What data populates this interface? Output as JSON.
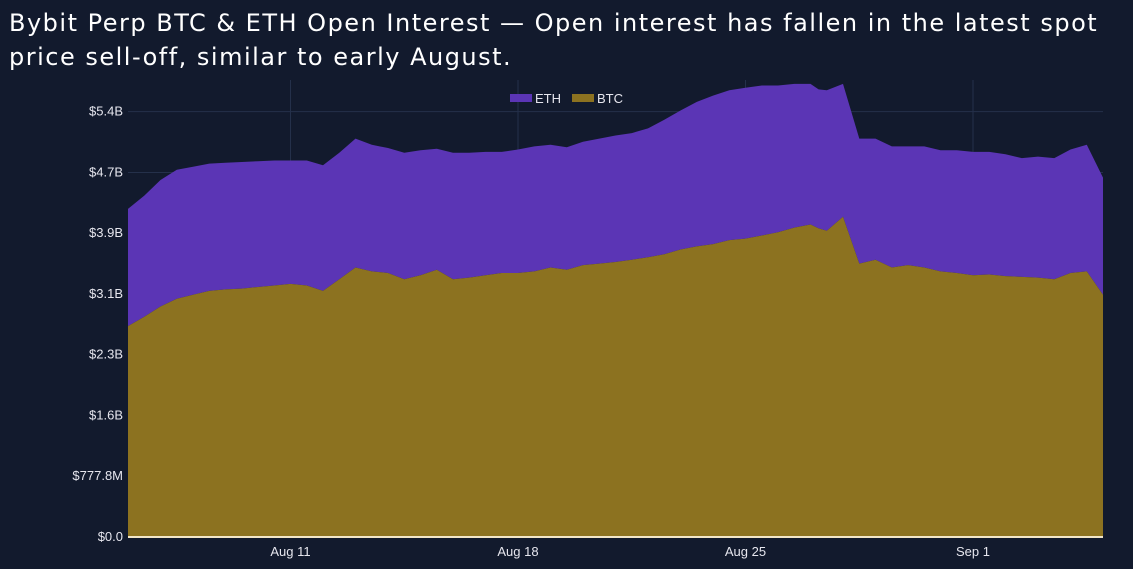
{
  "title": "Bybit Perp BTC & ETH Open Interest — Open interest has fallen in the latest spot price sell-off, similar to early August.",
  "colors": {
    "background": "#121a2d",
    "grid": "#24304a",
    "eth": "#5b35b5",
    "btc": "#8c7220",
    "baseline": "#f2e6c8",
    "text": "#e6e6ee"
  },
  "chart_data": {
    "type": "area",
    "stacked": true,
    "grid": true,
    "legend_position": "top-center",
    "ylim": [
      0,
      5.85
    ],
    "yticks": [
      {
        "value": 0,
        "label": "$0.0"
      },
      {
        "value": 0.7778,
        "label": "$777.8M"
      },
      {
        "value": 1.5556,
        "label": "$1.6B"
      },
      {
        "value": 2.3333,
        "label": "$2.3B"
      },
      {
        "value": 3.1111,
        "label": "$3.1B"
      },
      {
        "value": 3.8889,
        "label": "$3.9B"
      },
      {
        "value": 4.6667,
        "label": "$4.7B"
      },
      {
        "value": 5.4444,
        "label": "$5.4B"
      }
    ],
    "xlim": [
      "2024-08-06",
      "2024-09-05"
    ],
    "xticks": [
      {
        "value": "2024-08-11",
        "label": "Aug 11"
      },
      {
        "value": "2024-08-18",
        "label": "Aug 18"
      },
      {
        "value": "2024-08-25",
        "label": "Aug 25"
      },
      {
        "value": "2024-09-01",
        "label": "Sep 1"
      }
    ],
    "x": [
      "2024-08-06",
      "2024-08-06T12",
      "2024-08-07",
      "2024-08-07T12",
      "2024-08-08",
      "2024-08-08T12",
      "2024-08-09",
      "2024-08-09T12",
      "2024-08-10",
      "2024-08-10T12",
      "2024-08-11",
      "2024-08-11T12",
      "2024-08-12",
      "2024-08-12T12",
      "2024-08-13",
      "2024-08-13T12",
      "2024-08-14",
      "2024-08-14T12",
      "2024-08-15",
      "2024-08-15T12",
      "2024-08-16",
      "2024-08-16T12",
      "2024-08-17",
      "2024-08-17T12",
      "2024-08-18",
      "2024-08-18T12",
      "2024-08-19",
      "2024-08-19T12",
      "2024-08-20",
      "2024-08-20T12",
      "2024-08-21",
      "2024-08-21T12",
      "2024-08-22",
      "2024-08-22T12",
      "2024-08-23",
      "2024-08-23T12",
      "2024-08-24",
      "2024-08-24T12",
      "2024-08-25",
      "2024-08-25T12",
      "2024-08-26",
      "2024-08-26T12",
      "2024-08-27",
      "2024-08-27T06",
      "2024-08-27T12",
      "2024-08-28",
      "2024-08-28T12",
      "2024-08-29",
      "2024-08-29T12",
      "2024-08-30",
      "2024-08-30T12",
      "2024-08-31",
      "2024-08-31T12",
      "2024-09-01",
      "2024-09-01T12",
      "2024-09-02",
      "2024-09-02T12",
      "2024-09-03",
      "2024-09-03T12",
      "2024-09-04",
      "2024-09-04T12",
      "2024-09-05"
    ],
    "series": [
      {
        "name": "BTC",
        "values": [
          2.7,
          2.82,
          2.95,
          3.05,
          3.1,
          3.15,
          3.17,
          3.18,
          3.2,
          3.22,
          3.24,
          3.22,
          3.15,
          3.3,
          3.45,
          3.4,
          3.38,
          3.3,
          3.35,
          3.42,
          3.3,
          3.32,
          3.35,
          3.38,
          3.38,
          3.4,
          3.45,
          3.42,
          3.48,
          3.5,
          3.52,
          3.55,
          3.58,
          3.62,
          3.68,
          3.72,
          3.75,
          3.8,
          3.82,
          3.86,
          3.9,
          3.96,
          4.0,
          3.95,
          3.92,
          4.1,
          3.5,
          3.55,
          3.45,
          3.48,
          3.45,
          3.4,
          3.38,
          3.35,
          3.36,
          3.34,
          3.33,
          3.32,
          3.3,
          3.38,
          3.4,
          3.1
        ]
      },
      {
        "name": "ETH",
        "values": [
          1.5,
          1.55,
          1.62,
          1.65,
          1.64,
          1.63,
          1.62,
          1.62,
          1.61,
          1.6,
          1.58,
          1.6,
          1.61,
          1.62,
          1.65,
          1.62,
          1.6,
          1.62,
          1.6,
          1.55,
          1.62,
          1.6,
          1.58,
          1.55,
          1.58,
          1.6,
          1.57,
          1.57,
          1.58,
          1.6,
          1.62,
          1.62,
          1.65,
          1.72,
          1.78,
          1.85,
          1.9,
          1.92,
          1.93,
          1.92,
          1.88,
          1.84,
          1.8,
          1.78,
          1.8,
          1.7,
          1.6,
          1.55,
          1.55,
          1.52,
          1.55,
          1.55,
          1.57,
          1.58,
          1.57,
          1.56,
          1.52,
          1.55,
          1.55,
          1.58,
          1.62,
          1.5
        ]
      }
    ]
  }
}
